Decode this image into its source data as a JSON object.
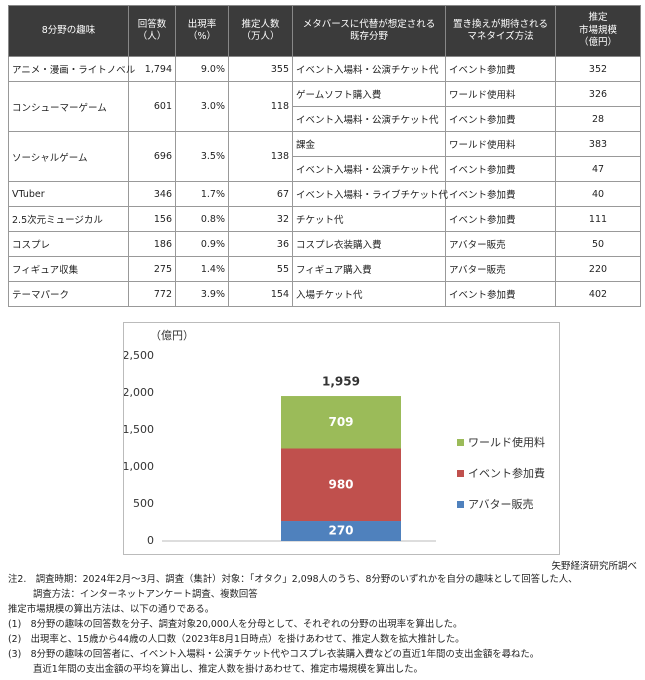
{
  "table": {
    "headers": [
      "8分野の趣味",
      "回答数\n（人）",
      "出現率\n（%）",
      "推定人数\n（万人）",
      "メタバースに代替が想定される\n既存分野",
      "置き換えが期待される\nマネタイズ方法",
      "推定\n市場規模\n（億円）"
    ],
    "rows": [
      {
        "hobby": "アニメ・漫画・ライトノベル",
        "respondents": "1,794",
        "rate": "9.0%",
        "people": "355",
        "items": [
          {
            "field": "イベント入場料・公演チケット代",
            "method": "イベント参加費",
            "market": "352"
          }
        ]
      },
      {
        "hobby": "コンシューマーゲーム",
        "respondents": "601",
        "rate": "3.0%",
        "people": "118",
        "items": [
          {
            "field": "ゲームソフト購入費",
            "method": "ワールド使用料",
            "market": "326"
          },
          {
            "field": "イベント入場料・公演チケット代",
            "method": "イベント参加費",
            "market": "28"
          }
        ]
      },
      {
        "hobby": "ソーシャルゲーム",
        "respondents": "696",
        "rate": "3.5%",
        "people": "138",
        "items": [
          {
            "field": "課金",
            "method": "ワールド使用料",
            "market": "383"
          },
          {
            "field": "イベント入場料・公演チケット代",
            "method": "イベント参加費",
            "market": "47"
          }
        ]
      },
      {
        "hobby": "VTuber",
        "respondents": "346",
        "rate": "1.7%",
        "people": "67",
        "items": [
          {
            "field": "イベント入場料・ライブチケット代",
            "method": "イベント参加費",
            "market": "40"
          }
        ]
      },
      {
        "hobby": "2.5次元ミュージカル",
        "respondents": "156",
        "rate": "0.8%",
        "people": "32",
        "items": [
          {
            "field": "チケット代",
            "method": "イベント参加費",
            "market": "111"
          }
        ]
      },
      {
        "hobby": "コスプレ",
        "respondents": "186",
        "rate": "0.9%",
        "people": "36",
        "items": [
          {
            "field": "コスプレ衣装購入費",
            "method": "アバター販売",
            "market": "50"
          }
        ]
      },
      {
        "hobby": "フィギュア収集",
        "respondents": "275",
        "rate": "1.4%",
        "people": "55",
        "items": [
          {
            "field": "フィギュア購入費",
            "method": "アバター販売",
            "market": "220"
          }
        ]
      },
      {
        "hobby": "テーマパーク",
        "respondents": "772",
        "rate": "3.9%",
        "people": "154",
        "items": [
          {
            "field": "入場チケット代",
            "method": "イベント参加費",
            "market": "402"
          }
        ]
      }
    ]
  },
  "chart_data": {
    "type": "stacked_bar",
    "y_unit_label": "（億円）",
    "categories": [
      null
    ],
    "series": [
      {
        "name": "アバター販売",
        "color": "#4f81bd",
        "values": [
          270
        ]
      },
      {
        "name": "イベント参加費",
        "color": "#c0504d",
        "values": [
          980
        ]
      },
      {
        "name": "ワールド使用料",
        "color": "#9bbb59",
        "values": [
          709
        ]
      }
    ],
    "total_label": "1,959",
    "ylim": [
      0,
      2500
    ],
    "yticks": [
      0,
      500,
      {
        "value": 1000,
        "label": "1,000"
      },
      {
        "value": 1500,
        "label": "1,500"
      },
      {
        "value": 2000,
        "label": "2,000"
      },
      {
        "value": 2500,
        "label": "2,500"
      }
    ]
  },
  "source": "矢野経済研究所調べ",
  "notes": [
    "注2.　調査時期：2024年2月～3月、調査（集計）対象：「オタク」2,098人のうち、8分野のいずれかを自分の趣味として回答した人、",
    "調査方法：インターネットアンケート調査、複数回答",
    "推定市場規模の算出方法は、以下の通りである。",
    "(1)　8分野の趣味の回答数を分子、調査対象20,000人を分母として、それぞれの分野の出現率を算出した。",
    "(2)　出現率と、15歳から44歳の人口数（2023年8月1日時点）を掛けあわせて、推定人数を拡大推計した。",
    "(3)　8分野の趣味の回答者に、イベント入場料・公演チケット代やコスプレ衣装購入費などの直近1年間の支出金額を尋ねた。",
    "直近1年間の支出金額の平均を算出し、推定人数を掛けあわせて、推定市場規模を算出した。"
  ]
}
